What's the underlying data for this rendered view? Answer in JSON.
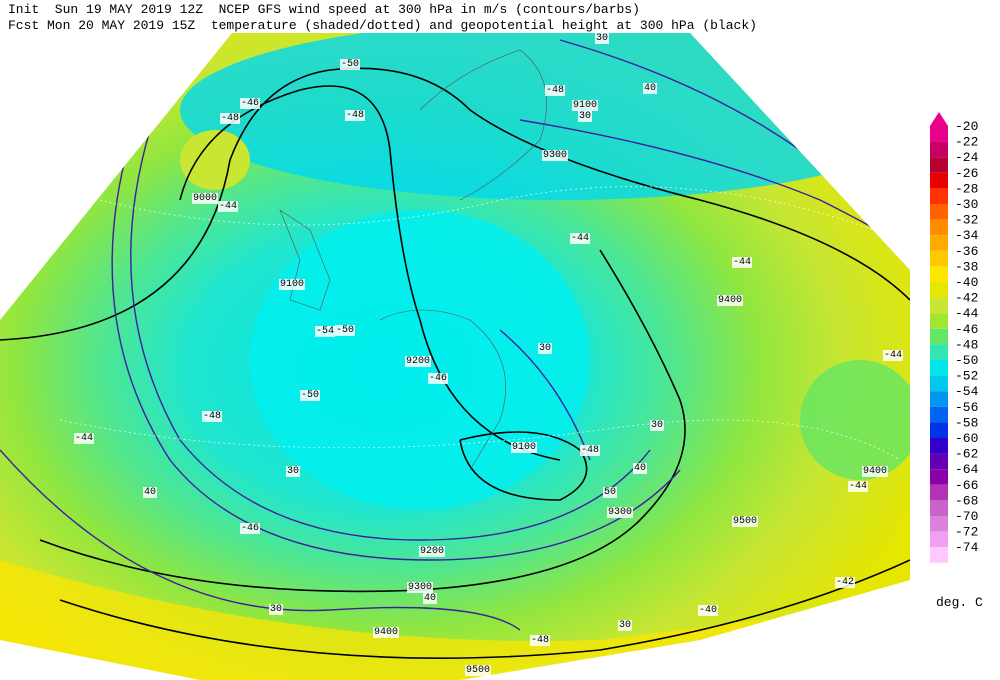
{
  "header": {
    "line1": "Init  Sun 19 MAY 2019 12Z  NCEP GFS wind speed at 300 hPa in m/s (contours/barbs)",
    "line2": "Fcst Mon 20 MAY 2019 15Z  temperature (shaded/dotted) and geopotential height at 300 hPa (black)"
  },
  "colorbar": {
    "labels": [
      "-20",
      "-22",
      "-24",
      "-26",
      "-28",
      "-30",
      "-32",
      "-34",
      "-36",
      "-38",
      "-40",
      "-42",
      "-44",
      "-46",
      "-48",
      "-50",
      "-52",
      "-54",
      "-56",
      "-58",
      "-60",
      "-62",
      "-64",
      "-66",
      "-68",
      "-70",
      "-72",
      "-74"
    ],
    "colors": [
      "#e6008c",
      "#c80064",
      "#b40032",
      "#e60000",
      "#ff3200",
      "#ff6400",
      "#ff8c00",
      "#ffaa00",
      "#ffc800",
      "#ffe600",
      "#e6e600",
      "#c8e632",
      "#a0e632",
      "#64e664",
      "#32e6b4",
      "#00e6e6",
      "#00c8f0",
      "#0096f0",
      "#0064f0",
      "#0032e6",
      "#3200c8",
      "#6400b4",
      "#8c00aa",
      "#b432b4",
      "#c864c8",
      "#dc82dc",
      "#f0a0f0",
      "#ffc8ff"
    ],
    "unit": "deg. C"
  },
  "map_labels": [
    "30",
    "9100",
    "30",
    "40",
    "9300",
    "-50",
    "-48",
    "-46",
    "-48",
    "-48",
    "9000",
    "-44",
    "9100",
    "-54",
    "-50",
    "-48",
    "9200",
    "-46",
    "-44",
    "-44",
    "9400",
    "-44",
    "30",
    "9100",
    "-48",
    "9400",
    "-44",
    "30",
    "9300",
    "9500",
    "40",
    "50",
    "9200",
    "30",
    "9300",
    "40",
    "9400",
    "-40",
    "30",
    "9500",
    "-48",
    "30",
    "40",
    "-42",
    "-46",
    "-44",
    "-50"
  ]
}
